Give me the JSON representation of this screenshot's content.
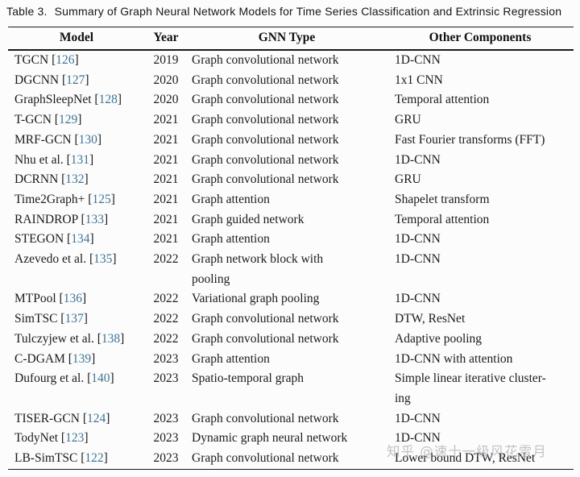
{
  "caption": {
    "label": "Table 3.",
    "text": "Summary of Graph Neural Network Models for Time Series Classification and Extrinsic Regression"
  },
  "table": {
    "headers": [
      "Model",
      "Year",
      "GNN Type",
      "Other Components"
    ],
    "rows": [
      {
        "model": "TGCN",
        "cite": "126",
        "year": "2019",
        "gnn": "Graph convolutional network",
        "other": "1D-CNN"
      },
      {
        "model": "DGCNN",
        "cite": "127",
        "year": "2020",
        "gnn": "Graph convolutional network",
        "other": "1x1 CNN"
      },
      {
        "model": "GraphSleepNet",
        "cite": "128",
        "year": "2020",
        "gnn": "Graph convolutional network",
        "other": "Temporal attention"
      },
      {
        "model": "T-GCN",
        "cite": "129",
        "year": "2021",
        "gnn": "Graph convolutional network",
        "other": "GRU"
      },
      {
        "model": "MRF-GCN",
        "cite": "130",
        "year": "2021",
        "gnn": "Graph convolutional network",
        "other": "Fast Fourier transforms (FFT)"
      },
      {
        "model": "Nhu et al.",
        "cite": "131",
        "year": "2021",
        "gnn": "Graph convolutional network",
        "other": "1D-CNN"
      },
      {
        "model": "DCRNN",
        "cite": "132",
        "year": "2021",
        "gnn": "Graph convolutional network",
        "other": "GRU"
      },
      {
        "model": "Time2Graph+",
        "cite": "125",
        "year": "2021",
        "gnn": "Graph attention",
        "other": "Shapelet transform"
      },
      {
        "model": "RAINDROP",
        "cite": "133",
        "year": "2021",
        "gnn": "Graph guided network",
        "other": "Temporal attention"
      },
      {
        "model": "STEGON",
        "cite": "134",
        "year": "2021",
        "gnn": "Graph attention",
        "other": "1D-CNN"
      },
      {
        "model": "Azevedo et al.",
        "cite": "135",
        "year": "2022",
        "gnn": "Graph network block with\npooling",
        "other": "1D-CNN"
      },
      {
        "model": "MTPool",
        "cite": "136",
        "year": "2022",
        "gnn": "Variational graph pooling",
        "other": "1D-CNN"
      },
      {
        "model": "SimTSC",
        "cite": "137",
        "year": "2022",
        "gnn": "Graph convolutional network",
        "other": "DTW, ResNet"
      },
      {
        "model": "Tulczyjew et al.",
        "cite": "138",
        "year": "2022",
        "gnn": "Graph convolutional network",
        "other": "Adaptive pooling"
      },
      {
        "model": "C-DGAM",
        "cite": "139",
        "year": "2023",
        "gnn": "Graph attention",
        "other": "1D-CNN with attention"
      },
      {
        "model": "Dufourg et al.",
        "cite": "140",
        "year": "2023",
        "gnn": "Spatio-temporal graph",
        "other": "Simple linear iterative cluster-\ning"
      },
      {
        "model": "TISER-GCN",
        "cite": "124",
        "year": "2023",
        "gnn": "Graph convolutional network",
        "other": "1D-CNN"
      },
      {
        "model": "TodyNet",
        "cite": "123",
        "year": "2023",
        "gnn": "Dynamic graph neural network",
        "other": "1D-CNN"
      },
      {
        "model": "LB-SimTSC",
        "cite": "122",
        "year": "2023",
        "gnn": "Graph convolutional network",
        "other": "Lower bound DTW, ResNet"
      }
    ]
  },
  "watermark": {
    "text": "知乎 @速十一级风花雪月"
  },
  "colors": {
    "citation": "#3e7496",
    "rule": "#1a1a1a",
    "watermark_gray": "#9aa0a6",
    "background": "#fcfcfc"
  }
}
